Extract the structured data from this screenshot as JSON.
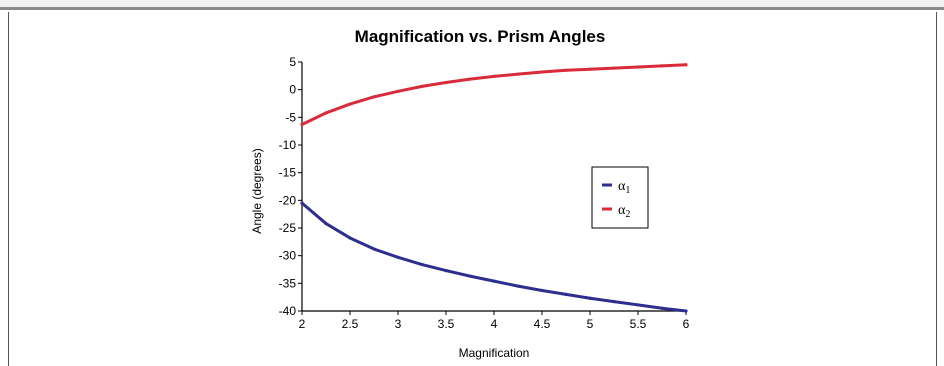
{
  "chart_data": {
    "type": "line",
    "title": "Magnification vs. Prism Angles",
    "xlabel": "Magnification",
    "ylabel": "Angle (degrees)",
    "xlim": [
      2,
      6
    ],
    "ylim": [
      -40,
      5
    ],
    "x_ticks": [
      "2",
      "2.5",
      "3",
      "3.5",
      "4",
      "4.5",
      "5",
      "5.5",
      "6"
    ],
    "y_ticks": [
      "5",
      "0",
      "-5",
      "-10",
      "-15",
      "-20",
      "-25",
      "-30",
      "-35",
      "-40"
    ],
    "grid": false,
    "legend_position": "right",
    "series": [
      {
        "name": "α1",
        "color": "#2e2e8f",
        "x": [
          2,
          2.25,
          2.5,
          2.75,
          3,
          3.25,
          3.5,
          3.75,
          4,
          4.25,
          4.5,
          4.75,
          5,
          5.25,
          5.5,
          5.75,
          6
        ],
        "y": [
          -20.5,
          -24.2,
          -26.8,
          -28.8,
          -30.3,
          -31.6,
          -32.7,
          -33.7,
          -34.6,
          -35.5,
          -36.3,
          -37.0,
          -37.7,
          -38.3,
          -38.9,
          -39.5,
          -40.0
        ]
      },
      {
        "name": "α2",
        "color": "#d92b3a",
        "x": [
          2,
          2.25,
          2.5,
          2.75,
          3,
          3.25,
          3.5,
          3.75,
          4,
          4.25,
          4.5,
          4.75,
          5,
          5.25,
          5.5,
          5.75,
          6
        ],
        "y": [
          -6.3,
          -4.2,
          -2.6,
          -1.3,
          -0.3,
          0.6,
          1.3,
          1.9,
          2.4,
          2.8,
          3.2,
          3.5,
          3.7,
          3.9,
          4.1,
          4.3,
          4.5
        ]
      }
    ],
    "legend_labels": [
      {
        "symbol": "α",
        "subscript": "1"
      },
      {
        "symbol": "α",
        "subscript": "2"
      }
    ]
  }
}
